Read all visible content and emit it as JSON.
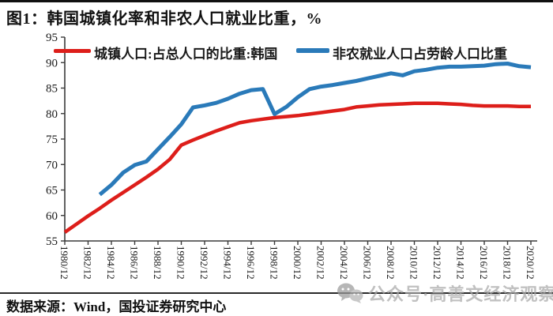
{
  "header": {
    "title": "图1：韩国城镇化率和非农人口就业比重，%"
  },
  "legend": [
    {
      "label": "城镇人口:占总人口的比重:韩国",
      "color": "#dd1e1a"
    },
    {
      "label": "非农就业人口占劳龄人口比重",
      "color": "#2a7ab9"
    }
  ],
  "footer": {
    "source": "数据来源：Wind，国投证券研究中心",
    "watermark": "公众号·高善文经济观察",
    "watermark_icon": "wechat-icon"
  },
  "chart_data": {
    "type": "line",
    "title": "韩国城镇化率和非农人口就业比重，%",
    "grid": false,
    "legend_position": "top-inside",
    "ylim": [
      55,
      95
    ],
    "y_ticks": [
      55,
      60,
      65,
      70,
      75,
      80,
      85,
      90,
      95
    ],
    "x_tick_labels": [
      "1980/12",
      "1982/12",
      "1984/12",
      "1986/12",
      "1988/12",
      "1990/12",
      "1992/12",
      "1994/12",
      "1996/12",
      "1998/12",
      "2000/12",
      "2002/12",
      "2004/12",
      "2006/12",
      "2008/12",
      "2010/12",
      "2012/12",
      "2014/12",
      "2016/12",
      "2018/12",
      "2020/12"
    ],
    "x": [
      1980,
      1981,
      1982,
      1983,
      1984,
      1985,
      1986,
      1987,
      1988,
      1989,
      1990,
      1991,
      1992,
      1993,
      1994,
      1995,
      1996,
      1997,
      1998,
      1999,
      2000,
      2001,
      2002,
      2003,
      2004,
      2005,
      2006,
      2007,
      2008,
      2009,
      2010,
      2011,
      2012,
      2013,
      2014,
      2015,
      2016,
      2017,
      2018,
      2019,
      2020
    ],
    "axis_color": "#3a3a3a",
    "series": [
      {
        "name": "城镇人口:占总人口的比重:韩国",
        "color": "#dd1e1a",
        "values": [
          56.7,
          58.3,
          59.9,
          61.4,
          63.0,
          64.5,
          66.0,
          67.5,
          69.1,
          71.0,
          73.8,
          74.8,
          75.7,
          76.6,
          77.4,
          78.2,
          78.6,
          78.9,
          79.2,
          79.4,
          79.6,
          79.9,
          80.2,
          80.5,
          80.8,
          81.3,
          81.5,
          81.7,
          81.8,
          81.9,
          82.0,
          82.0,
          82.0,
          81.9,
          81.8,
          81.6,
          81.5,
          81.5,
          81.5,
          81.4,
          81.4
        ]
      },
      {
        "name": "非农就业人口占劳龄人口比重",
        "color": "#2a7ab9",
        "values": [
          null,
          null,
          null,
          64.1,
          66.0,
          68.4,
          69.9,
          70.6,
          73.0,
          75.4,
          77.9,
          81.2,
          81.6,
          82.1,
          82.9,
          83.9,
          84.6,
          84.8,
          79.9,
          81.3,
          83.2,
          84.8,
          85.3,
          85.6,
          86.0,
          86.4,
          86.9,
          87.4,
          87.9,
          87.5,
          88.3,
          88.6,
          89.0,
          89.2,
          89.2,
          89.3,
          89.4,
          89.7,
          89.8,
          89.3,
          89.1
        ]
      }
    ]
  }
}
